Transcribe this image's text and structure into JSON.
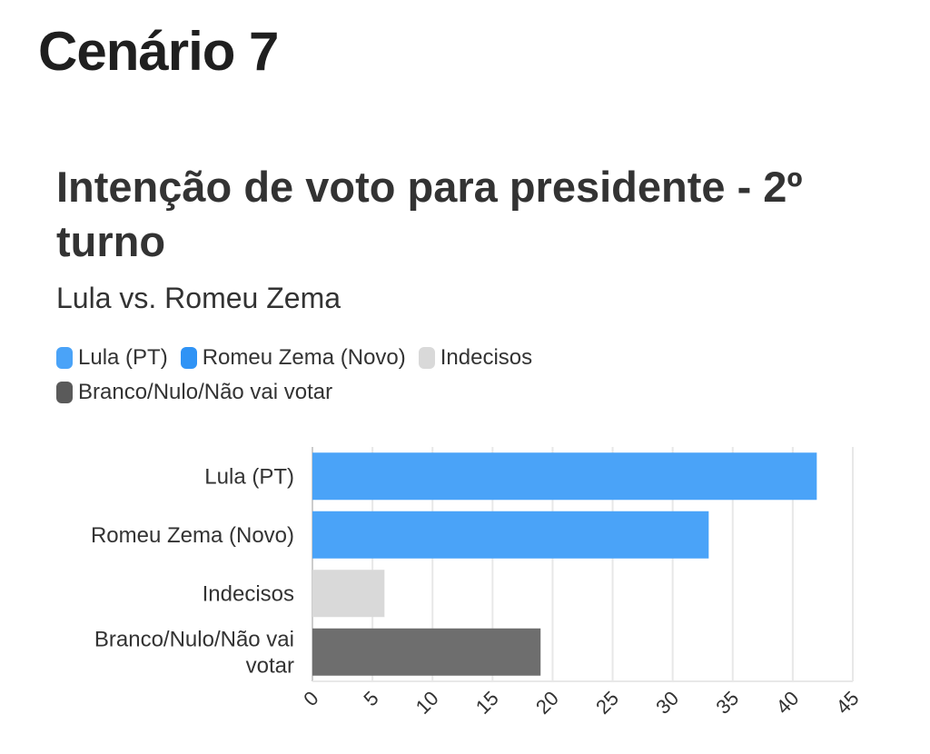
{
  "page": {
    "heading": "Cenário 7"
  },
  "chart_data": {
    "type": "bar",
    "orientation": "horizontal",
    "title": "Intenção de voto para presidente - 2º turno",
    "subtitle": "Lula vs. Romeu Zema",
    "categories": [
      "Lula (PT)",
      "Romeu Zema (Novo)",
      "Indecisos",
      "Branco/Nulo/Não vai votar"
    ],
    "category_label_lines": [
      [
        "Lula (PT)"
      ],
      [
        "Romeu Zema (Novo)"
      ],
      [
        "Indecisos"
      ],
      [
        "Branco/Nulo/Não vai",
        "votar"
      ]
    ],
    "values": [
      42,
      33,
      6,
      19
    ],
    "colors": [
      "#4aa3f8",
      "#4aa3f8",
      "#d9d9d9",
      "#6e6e6e"
    ],
    "xlim": [
      0,
      45
    ],
    "x_ticks": [
      0,
      5,
      10,
      15,
      20,
      25,
      30,
      35,
      40,
      45
    ],
    "grid": true,
    "legend": {
      "placement": "top-left",
      "items": [
        {
          "label": "Lula (PT)",
          "color": "#4aa3f8"
        },
        {
          "label": "Romeu Zema (Novo)",
          "color": "#2f93f5"
        },
        {
          "label": "Indecisos",
          "color": "#d9d9d9"
        },
        {
          "label": "Branco/Nulo/Não vai votar",
          "color": "#5a5a5a"
        }
      ]
    }
  }
}
